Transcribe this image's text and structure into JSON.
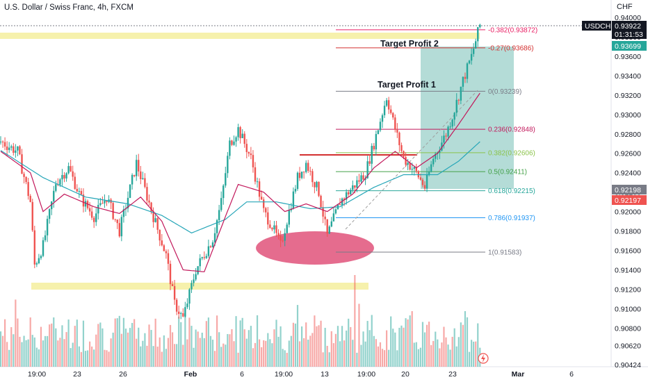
{
  "header": {
    "title": "U.S. Dollar / Swiss Franc, 4h, FXCM"
  },
  "axis": {
    "currency": "CHF"
  },
  "price_ticks": [
    "0.94000",
    "0.93800",
    "0.93600",
    "0.93400",
    "0.93200",
    "0.93000",
    "0.92800",
    "0.92600",
    "0.92400",
    "0.92200",
    "0.92000",
    "0.91800",
    "0.91600",
    "0.91400",
    "0.91200",
    "0.91000",
    "0.90800",
    "0.90620",
    "0.90424"
  ],
  "time_ticks": [
    "19:00",
    "23",
    "26",
    "Feb",
    "6",
    "19:00",
    "13",
    "19:00",
    "20",
    "23",
    "Mar",
    "6"
  ],
  "badges": {
    "symbol": "USDCHF",
    "last_price": "0.93922",
    "countdown": "01:31:53",
    "ma_fast": "0.93699",
    "ma_slow_a": "0.92198",
    "ma_slow_b": "0.92197"
  },
  "annotations": {
    "target_profit_2": "Target Profit 2",
    "target_profit_1": "Target Profit 1"
  },
  "fib_levels": [
    {
      "label": "-0.382(0.93872)",
      "price": 0.93872,
      "color": "#e91e63"
    },
    {
      "label": "-0.27(0.93686)",
      "price": 0.93686,
      "color": "#d32f2f"
    },
    {
      "label": "0(0.93239)",
      "price": 0.93239,
      "color": "#787b86"
    },
    {
      "label": "0.236(0.92848)",
      "price": 0.92848,
      "color": "#c2185b"
    },
    {
      "label": "0.382(0.92606)",
      "price": 0.92606,
      "color": "#8bc34a"
    },
    {
      "label": "0.5(0.92411)",
      "price": 0.92411,
      "color": "#43a047"
    },
    {
      "label": "0.618(0.92215)",
      "price": 0.92215,
      "color": "#26a69a"
    },
    {
      "label": "0.786(0.91937)",
      "price": 0.91937,
      "color": "#2196f3"
    },
    {
      "label": "1(0.91583)",
      "price": 0.91583,
      "color": "#787b86"
    }
  ],
  "colors": {
    "up": "#26a69a",
    "down": "#ef5350",
    "ma_red": "#c2185b",
    "ma_teal": "#26a6b8",
    "zone_yellow": "#f4ef9d",
    "target_box": "#8cc9c2",
    "ellipse": "#e0527a"
  },
  "chart_data": {
    "type": "candlestick",
    "title": "U.S. Dollar / Swiss Franc, 4h, FXCM",
    "ylabel": "CHF",
    "ylim": [
      0.90424,
      0.94
    ],
    "grid": false,
    "path_anchors": [
      [
        0,
        0.9272
      ],
      [
        8,
        0.9262
      ],
      [
        14,
        0.921
      ],
      [
        16,
        0.9145
      ],
      [
        20,
        0.9165
      ],
      [
        26,
        0.923
      ],
      [
        32,
        0.9245
      ],
      [
        38,
        0.9213
      ],
      [
        44,
        0.9195
      ],
      [
        50,
        0.9215
      ],
      [
        56,
        0.918
      ],
      [
        64,
        0.925
      ],
      [
        72,
        0.9195
      ],
      [
        78,
        0.9155
      ],
      [
        82,
        0.9105
      ],
      [
        86,
        0.909
      ],
      [
        92,
        0.914
      ],
      [
        100,
        0.9172
      ],
      [
        104,
        0.921
      ],
      [
        108,
        0.927
      ],
      [
        112,
        0.9285
      ],
      [
        118,
        0.9255
      ],
      [
        124,
        0.92
      ],
      [
        128,
        0.9185
      ],
      [
        132,
        0.9165
      ],
      [
        136,
        0.92
      ],
      [
        140,
        0.9235
      ],
      [
        144,
        0.925
      ],
      [
        150,
        0.922
      ],
      [
        154,
        0.9175
      ],
      [
        160,
        0.921
      ],
      [
        166,
        0.9225
      ],
      [
        172,
        0.924
      ],
      [
        176,
        0.927
      ],
      [
        182,
        0.9318
      ],
      [
        186,
        0.9285
      ],
      [
        190,
        0.9255
      ],
      [
        196,
        0.924
      ],
      [
        200,
        0.9225
      ],
      [
        204,
        0.9255
      ],
      [
        210,
        0.928
      ],
      [
        214,
        0.9305
      ],
      [
        218,
        0.9335
      ],
      [
        222,
        0.936
      ],
      [
        226,
        0.9392
      ]
    ],
    "ma_fast_anchors": [
      [
        0,
        0.9262
      ],
      [
        14,
        0.924
      ],
      [
        20,
        0.92
      ],
      [
        30,
        0.9218
      ],
      [
        44,
        0.9205
      ],
      [
        56,
        0.9198
      ],
      [
        66,
        0.9215
      ],
      [
        76,
        0.919
      ],
      [
        86,
        0.914
      ],
      [
        96,
        0.9138
      ],
      [
        106,
        0.9195
      ],
      [
        112,
        0.9228
      ],
      [
        124,
        0.922
      ],
      [
        134,
        0.92
      ],
      [
        144,
        0.9208
      ],
      [
        154,
        0.92
      ],
      [
        166,
        0.9218
      ],
      [
        176,
        0.9245
      ],
      [
        186,
        0.9262
      ],
      [
        196,
        0.9245
      ],
      [
        206,
        0.926
      ],
      [
        216,
        0.929
      ],
      [
        226,
        0.9322
      ]
    ],
    "ma_slow_anchors": [
      [
        0,
        0.9263
      ],
      [
        20,
        0.9235
      ],
      [
        40,
        0.9215
      ],
      [
        60,
        0.9208
      ],
      [
        76,
        0.9196
      ],
      [
        90,
        0.9178
      ],
      [
        106,
        0.9192
      ],
      [
        116,
        0.921
      ],
      [
        130,
        0.921
      ],
      [
        146,
        0.9203
      ],
      [
        160,
        0.9205
      ],
      [
        176,
        0.9225
      ],
      [
        190,
        0.9238
      ],
      [
        206,
        0.9238
      ],
      [
        216,
        0.9252
      ],
      [
        226,
        0.9272
      ]
    ]
  }
}
